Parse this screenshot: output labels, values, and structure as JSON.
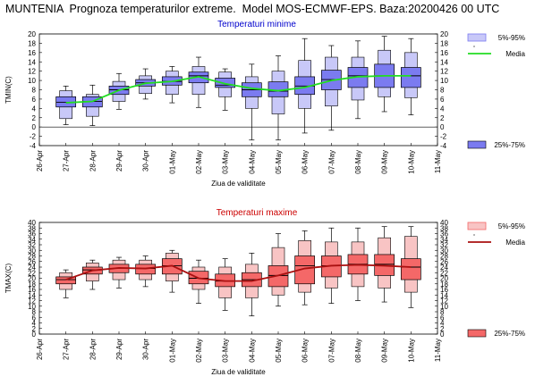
{
  "header": {
    "title": "MUNTENIA  Prognoza temperaturilor extreme.  Model MOS-ECMWF-EPS. Baza:20200426 00 UTC"
  },
  "colors": {
    "tmin_box": "#7b7bf0",
    "tmin_whisker_box": "#c8c8f8",
    "tmin_median_line": "#22dd22",
    "tmax_box": "#f46868",
    "tmax_whisker_box": "#f8c4c4",
    "tmax_median_line": "#aa1010"
  },
  "chart_data": [
    {
      "type": "box",
      "title": "Temperaturi minime",
      "xlabel": "Ziua de validitate",
      "ylabel": "TMIN(C)",
      "ylim": [
        -4,
        20
      ],
      "yticks": [
        -4,
        -2,
        0,
        2,
        4,
        6,
        8,
        10,
        12,
        14,
        16,
        18,
        20
      ],
      "grid": false,
      "legend": [
        "5%-95%",
        "Media",
        "25%-75%"
      ],
      "x_axis_labels": [
        "26-Apr",
        "27-Apr",
        "28-Apr",
        "29-Apr",
        "30-Apr",
        "01-May",
        "02-May",
        "03-May",
        "04-May",
        "05-May",
        "06-May",
        "07-May",
        "08-May",
        "09-May",
        "10-May",
        "11-May"
      ],
      "categories": [
        "27-Apr",
        "28-Apr",
        "29-Apr",
        "30-Apr",
        "01-May",
        "02-May",
        "03-May",
        "04-May",
        "05-May",
        "06-May",
        "07-May",
        "08-May",
        "09-May",
        "10-May"
      ],
      "min": [
        0.5,
        0.3,
        3.8,
        6.0,
        5.2,
        4.2,
        3.6,
        -2.8,
        -2.8,
        -1.3,
        -0.7,
        1.8,
        3.3,
        2.6
      ],
      "p5": [
        1.8,
        2.3,
        5.5,
        7.2,
        7.0,
        7.0,
        6.5,
        4.0,
        2.8,
        4.0,
        4.5,
        5.8,
        6.5,
        6.3
      ],
      "q1": [
        4.3,
        4.3,
        7.0,
        8.8,
        9.0,
        9.5,
        8.5,
        6.5,
        6.5,
        7.0,
        8.0,
        8.5,
        8.5,
        8.5
      ],
      "median": [
        5.3,
        5.5,
        8.0,
        9.5,
        9.8,
        11.0,
        9.0,
        8.0,
        7.7,
        8.8,
        10.2,
        11.0,
        11.0,
        11.0
      ],
      "q3": [
        6.5,
        6.5,
        8.8,
        10.2,
        10.8,
        11.8,
        10.5,
        9.5,
        9.7,
        10.8,
        12.2,
        12.8,
        13.5,
        12.8
      ],
      "p95": [
        7.8,
        7.0,
        9.8,
        11.0,
        12.0,
        13.0,
        11.8,
        10.8,
        12.0,
        14.3,
        15.0,
        15.0,
        16.5,
        16.0
      ],
      "max": [
        8.8,
        9.0,
        11.5,
        12.5,
        13.0,
        15.0,
        12.5,
        13.5,
        15.3,
        19.0,
        17.5,
        18.5,
        19.5,
        19.0
      ],
      "series": [
        {
          "name": "Media",
          "values": [
            5.2,
            5.5,
            7.9,
            9.4,
            9.8,
            10.8,
            9.3,
            8.3,
            7.8,
            8.5,
            10.0,
            10.8,
            11.0,
            11.0
          ]
        }
      ]
    },
    {
      "type": "box",
      "title": "Temperaturi maxime",
      "xlabel": "Ziua de validitate",
      "ylabel": "TMAX(C)",
      "ylim": [
        0,
        40
      ],
      "yticks": [
        0,
        2,
        4,
        6,
        8,
        10,
        12,
        14,
        16,
        18,
        20,
        22,
        24,
        26,
        28,
        30,
        32,
        34,
        36,
        38,
        40
      ],
      "grid": false,
      "legend": [
        "5%-95%",
        "Media",
        "25%-75%"
      ],
      "x_axis_labels": [
        "26-Apr",
        "27-Apr",
        "28-Apr",
        "29-Apr",
        "30-Apr",
        "01-May",
        "02-May",
        "03-May",
        "04-May",
        "05-May",
        "06-May",
        "07-May",
        "08-May",
        "09-May",
        "10-May",
        "11-May"
      ],
      "categories": [
        "27-Apr",
        "28-Apr",
        "29-Apr",
        "30-Apr",
        "01-May",
        "02-May",
        "03-May",
        "04-May",
        "05-May",
        "06-May",
        "07-May",
        "08-May",
        "09-May",
        "10-May"
      ],
      "min": [
        13.0,
        16.0,
        16.5,
        17.0,
        15.0,
        11.0,
        8.5,
        6.5,
        10.0,
        10.5,
        11.0,
        12.0,
        11.5,
        9.5
      ],
      "p5": [
        16.0,
        19.0,
        19.5,
        19.5,
        19.0,
        16.0,
        13.0,
        13.0,
        14.0,
        15.0,
        16.5,
        17.0,
        16.5,
        15.0
      ],
      "q1": [
        18.0,
        21.5,
        22.0,
        21.5,
        21.5,
        18.0,
        17.0,
        17.0,
        17.0,
        18.0,
        20.5,
        21.5,
        21.0,
        19.5
      ],
      "median": [
        19.5,
        23.0,
        23.5,
        23.5,
        24.5,
        20.0,
        19.0,
        19.5,
        21.0,
        24.5,
        24.5,
        25.0,
        25.0,
        24.0
      ],
      "q3": [
        20.5,
        24.0,
        25.0,
        25.0,
        27.0,
        22.5,
        21.5,
        22.0,
        24.5,
        28.0,
        28.0,
        28.5,
        28.5,
        27.0
      ],
      "p95": [
        22.0,
        25.5,
        26.5,
        26.5,
        29.0,
        24.0,
        24.0,
        25.0,
        31.0,
        33.5,
        33.0,
        33.0,
        34.5,
        35.0
      ],
      "max": [
        23.0,
        26.5,
        27.5,
        28.0,
        30.0,
        26.5,
        27.0,
        29.0,
        36.0,
        37.0,
        38.0,
        38.0,
        38.5,
        38.5
      ],
      "series": [
        {
          "name": "Media",
          "values": [
            19.5,
            22.8,
            23.7,
            23.5,
            24.5,
            20.0,
            19.0,
            19.0,
            21.0,
            23.5,
            24.5,
            24.8,
            24.5,
            24.0
          ]
        }
      ]
    }
  ]
}
